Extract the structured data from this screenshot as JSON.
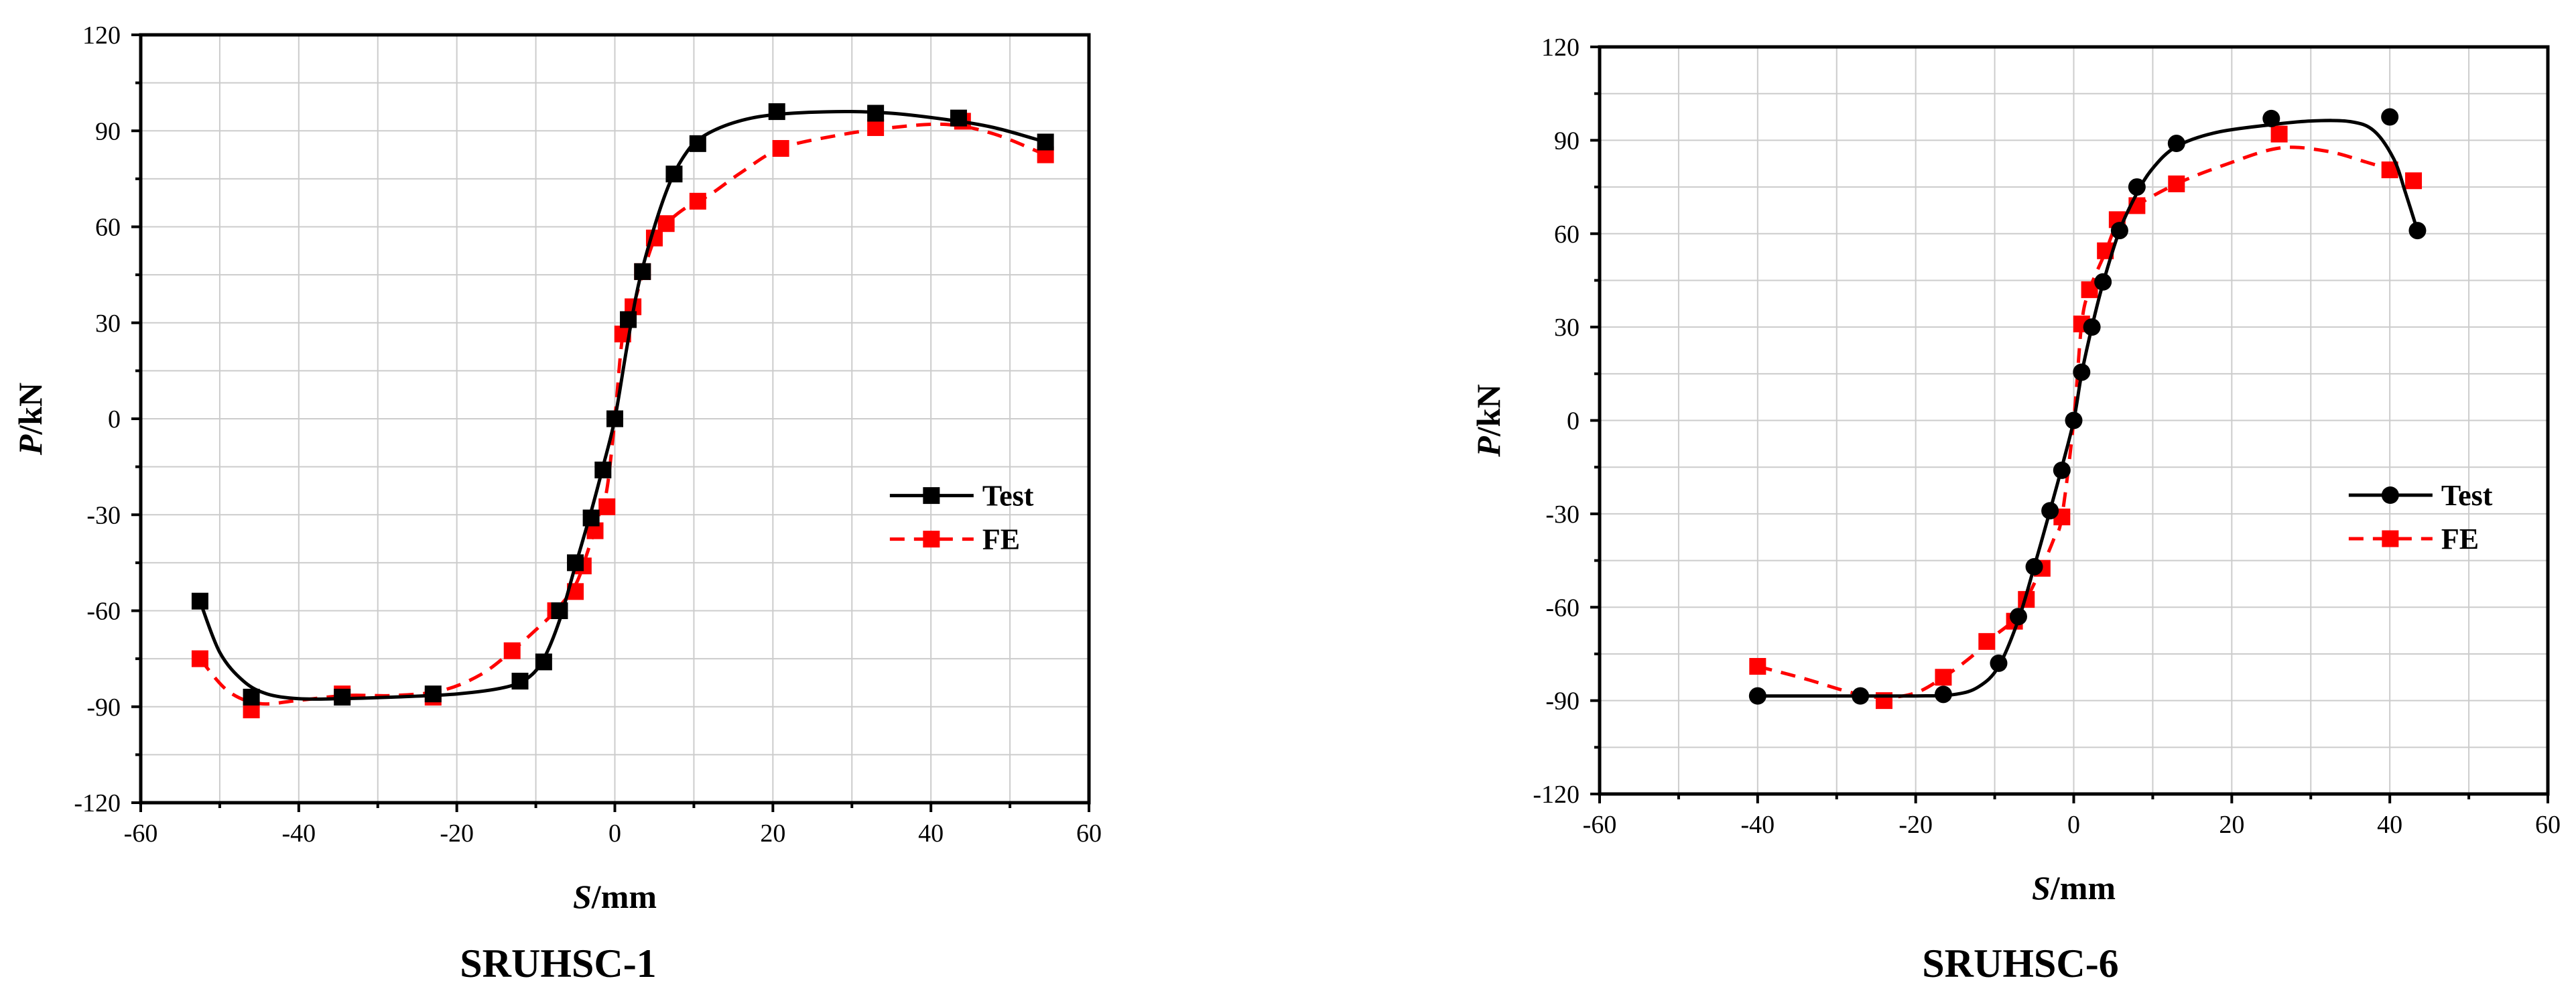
{
  "figure": {
    "panels": [
      {
        "caption": "SRUHSC-1"
      },
      {
        "caption": "SRUHSC-6"
      }
    ]
  },
  "chart_data": [
    {
      "type": "line",
      "title": "SRUHSC-1",
      "xlabel": "S/mm",
      "xlabel_italic": "S",
      "xlabel_unit": "/mm",
      "ylabel": "P/kN",
      "ylabel_italic": "P",
      "ylabel_unit": "/kN",
      "xlim": [
        -60,
        60
      ],
      "ylim": [
        -120,
        120
      ],
      "xticks": [
        -60,
        -40,
        -20,
        0,
        20,
        40,
        60
      ],
      "yticks": [
        -120,
        -90,
        -60,
        -30,
        0,
        30,
        60,
        90,
        120
      ],
      "grid": true,
      "legend": "center-right",
      "series": [
        {
          "name": "Test",
          "color": "#000000",
          "marker": "square",
          "line": "solid",
          "points": [
            [
              -52.5,
              -57
            ],
            [
              -46,
              -87
            ],
            [
              -34.5,
              -87
            ],
            [
              -23,
              -86
            ],
            [
              -12,
              -82
            ],
            [
              -9,
              -76
            ],
            [
              -7,
              -60
            ],
            [
              -5,
              -45
            ],
            [
              -3,
              -31
            ],
            [
              -1.5,
              -16
            ],
            [
              0,
              0
            ],
            [
              1.7,
              31
            ],
            [
              3.5,
              46
            ],
            [
              7.5,
              76.5
            ],
            [
              10.5,
              86
            ],
            [
              20.5,
              96
            ],
            [
              33,
              95.5
            ],
            [
              43.5,
              94
            ],
            [
              54.5,
              86.5
            ]
          ],
          "curve": [
            [
              -52.5,
              -57
            ],
            [
              -50,
              -73
            ],
            [
              -47,
              -82
            ],
            [
              -44,
              -86
            ],
            [
              -40,
              -87.5
            ],
            [
              -35,
              -87.5
            ],
            [
              -28,
              -87
            ],
            [
              -20,
              -86
            ],
            [
              -14,
              -84
            ],
            [
              -11,
              -81
            ],
            [
              -9,
              -75
            ],
            [
              -7,
              -63
            ],
            [
              -5,
              -46
            ],
            [
              -3,
              -29
            ],
            [
              -1.5,
              -15
            ],
            [
              0,
              0
            ],
            [
              1.5,
              22
            ],
            [
              3,
              42
            ],
            [
              5,
              60
            ],
            [
              7,
              74
            ],
            [
              9,
              83
            ],
            [
              11,
              88
            ],
            [
              15,
              92.5
            ],
            [
              20,
              95
            ],
            [
              28,
              96
            ],
            [
              35,
              95.5
            ],
            [
              42,
              93.5
            ],
            [
              48,
              91
            ],
            [
              54.5,
              86.5
            ]
          ]
        },
        {
          "name": "FE",
          "color": "#ff0000",
          "marker": "square",
          "line": "dashed",
          "points": [
            [
              -52.5,
              -75
            ],
            [
              -46,
              -91
            ],
            [
              -34.5,
              -86
            ],
            [
              -23,
              -87
            ],
            [
              -13,
              -72.5
            ],
            [
              -7.5,
              -60
            ],
            [
              -5,
              -54
            ],
            [
              -4,
              -46
            ],
            [
              -2.5,
              -35
            ],
            [
              -1,
              -27.5
            ],
            [
              1,
              26.5
            ],
            [
              2.3,
              35
            ],
            [
              3.5,
              46
            ],
            [
              5,
              56.5
            ],
            [
              6.5,
              61
            ],
            [
              10.5,
              68
            ],
            [
              21,
              84.5
            ],
            [
              33,
              91
            ],
            [
              44,
              93
            ],
            [
              54.5,
              82.5
            ]
          ],
          "curve": [
            [
              -52.5,
              -75
            ],
            [
              -49,
              -85
            ],
            [
              -45,
              -89
            ],
            [
              -40,
              -88
            ],
            [
              -34,
              -86.5
            ],
            [
              -28,
              -86.5
            ],
            [
              -22,
              -85
            ],
            [
              -17,
              -80
            ],
            [
              -13,
              -72.5
            ],
            [
              -10,
              -66
            ],
            [
              -7.5,
              -60
            ],
            [
              -5,
              -52
            ],
            [
              -3.5,
              -42
            ],
            [
              -2,
              -30
            ],
            [
              -1,
              -22
            ],
            [
              0,
              0
            ],
            [
              1,
              26
            ],
            [
              2.3,
              35
            ],
            [
              3.5,
              45
            ],
            [
              5,
              56
            ],
            [
              6.5,
              61
            ],
            [
              9,
              66
            ],
            [
              12,
              70
            ],
            [
              16,
              77
            ],
            [
              21,
              84.5
            ],
            [
              28,
              88.5
            ],
            [
              35,
              91
            ],
            [
              42,
              92
            ],
            [
              48,
              89
            ],
            [
              54.5,
              82.5
            ]
          ]
        }
      ]
    },
    {
      "type": "line",
      "title": "SRUHSC-6",
      "xlabel": "S/mm",
      "xlabel_italic": "S",
      "xlabel_unit": "/mm",
      "ylabel": "P/kN",
      "ylabel_italic": "P",
      "ylabel_unit": "/kN",
      "xlim": [
        -60,
        60
      ],
      "ylim": [
        -120,
        120
      ],
      "xticks": [
        -60,
        -40,
        -20,
        0,
        20,
        40,
        60
      ],
      "yticks": [
        -120,
        -90,
        -60,
        -30,
        0,
        30,
        60,
        90,
        120
      ],
      "grid": true,
      "legend": "center-right",
      "series": [
        {
          "name": "Test",
          "color": "#000000",
          "marker": "circle",
          "line": "solid",
          "points": [
            [
              -40,
              -88.5
            ],
            [
              -27,
              -88.5
            ],
            [
              -16.5,
              -88
            ],
            [
              -9.5,
              -78
            ],
            [
              -7,
              -63
            ],
            [
              -5,
              -47
            ],
            [
              -3,
              -29
            ],
            [
              -1.5,
              -16
            ],
            [
              0,
              0
            ],
            [
              1,
              15.5
            ],
            [
              2.3,
              30
            ],
            [
              3.7,
              44.5
            ],
            [
              5.8,
              61
            ],
            [
              8,
              75
            ],
            [
              13,
              89
            ],
            [
              25,
              97
            ],
            [
              40,
              97.5
            ],
            [
              43.5,
              61
            ]
          ],
          "curve": [
            [
              -40,
              -88.5
            ],
            [
              -30,
              -88.5
            ],
            [
              -20,
              -88.5
            ],
            [
              -15,
              -88
            ],
            [
              -12,
              -85.5
            ],
            [
              -9.5,
              -79
            ],
            [
              -7,
              -64
            ],
            [
              -5,
              -47
            ],
            [
              -3,
              -29
            ],
            [
              -1.5,
              -15
            ],
            [
              0,
              0
            ],
            [
              1,
              15
            ],
            [
              2.3,
              30
            ],
            [
              3.7,
              44
            ],
            [
              5.8,
              61
            ],
            [
              8,
              73
            ],
            [
              10,
              81
            ],
            [
              13,
              88
            ],
            [
              18,
              92.5
            ],
            [
              25,
              95
            ],
            [
              30,
              96.2
            ],
            [
              35,
              96
            ],
            [
              38,
              93
            ],
            [
              40.5,
              84
            ],
            [
              42,
              73
            ],
            [
              43.5,
              61
            ]
          ]
        },
        {
          "name": "FE",
          "color": "#ff0000",
          "marker": "square",
          "line": "dashed",
          "points": [
            [
              -40,
              -79
            ],
            [
              -24,
              -90
            ],
            [
              -16.5,
              -82.5
            ],
            [
              -11,
              -71
            ],
            [
              -7.5,
              -64.5
            ],
            [
              -6,
              -57.5
            ],
            [
              -4,
              -47.5
            ],
            [
              -1.5,
              -31
            ],
            [
              1,
              31
            ],
            [
              2,
              42
            ],
            [
              4,
              54.5
            ],
            [
              5.5,
              64.5
            ],
            [
              8,
              69
            ],
            [
              13,
              76
            ],
            [
              26,
              92
            ],
            [
              40,
              80.5
            ],
            [
              43,
              77
            ]
          ],
          "curve": [
            [
              -40,
              -79
            ],
            [
              -34,
              -83
            ],
            [
              -28,
              -87.5
            ],
            [
              -24,
              -89
            ],
            [
              -20,
              -87.5
            ],
            [
              -16.5,
              -82.5
            ],
            [
              -13,
              -76
            ],
            [
              -11,
              -71
            ],
            [
              -7.5,
              -64
            ],
            [
              -6,
              -57.5
            ],
            [
              -4,
              -47
            ],
            [
              -2.5,
              -38
            ],
            [
              -1.5,
              -31
            ],
            [
              0,
              0
            ],
            [
              1,
              31
            ],
            [
              2,
              42
            ],
            [
              4,
              54
            ],
            [
              5.5,
              63
            ],
            [
              8,
              69
            ],
            [
              13,
              76
            ],
            [
              19,
              82
            ],
            [
              26,
              87.5
            ],
            [
              32,
              86.5
            ],
            [
              37,
              83
            ],
            [
              40,
              80.5
            ],
            [
              43,
              77
            ]
          ]
        }
      ]
    }
  ]
}
